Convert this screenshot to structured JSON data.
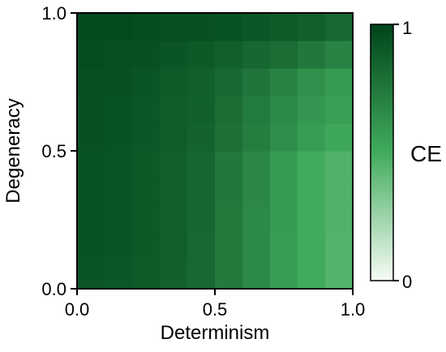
{
  "chart_data": {
    "type": "heatmap",
    "xlabel": "Determinism",
    "ylabel": "Degeneracy",
    "xlim": [
      0,
      1
    ],
    "ylim": [
      0,
      1
    ],
    "x_ticks": [
      "0.0",
      "0.5",
      "1.0"
    ],
    "y_ticks": [
      "0.0",
      "0.5",
      "1.0"
    ],
    "colorbar": {
      "label": "CE",
      "min_label": "0",
      "max_label": "1",
      "range": [
        0,
        1
      ]
    },
    "colormap": {
      "low": "#f7fcf5",
      "mid": "#41ab5d",
      "high": "#00441b"
    },
    "x_bins": 10,
    "y_bins": 10,
    "values": [
      [
        0.92,
        0.91,
        0.89,
        0.86,
        0.82,
        0.74,
        0.66,
        0.57,
        0.5,
        0.45
      ],
      [
        0.93,
        0.92,
        0.9,
        0.87,
        0.82,
        0.74,
        0.66,
        0.57,
        0.5,
        0.45
      ],
      [
        0.93,
        0.92,
        0.9,
        0.87,
        0.83,
        0.74,
        0.66,
        0.58,
        0.5,
        0.46
      ],
      [
        0.93,
        0.92,
        0.9,
        0.87,
        0.83,
        0.75,
        0.67,
        0.58,
        0.5,
        0.46
      ],
      [
        0.93,
        0.92,
        0.9,
        0.87,
        0.83,
        0.75,
        0.67,
        0.58,
        0.5,
        0.46
      ],
      [
        0.94,
        0.93,
        0.91,
        0.88,
        0.85,
        0.79,
        0.72,
        0.64,
        0.57,
        0.52
      ],
      [
        0.94,
        0.93,
        0.91,
        0.88,
        0.86,
        0.8,
        0.73,
        0.66,
        0.6,
        0.56
      ],
      [
        0.95,
        0.94,
        0.92,
        0.89,
        0.87,
        0.82,
        0.76,
        0.69,
        0.63,
        0.58
      ],
      [
        0.96,
        0.95,
        0.94,
        0.92,
        0.9,
        0.87,
        0.83,
        0.8,
        0.75,
        0.7
      ],
      [
        0.97,
        0.97,
        0.96,
        0.95,
        0.94,
        0.93,
        0.91,
        0.89,
        0.87,
        0.82
      ]
    ]
  }
}
